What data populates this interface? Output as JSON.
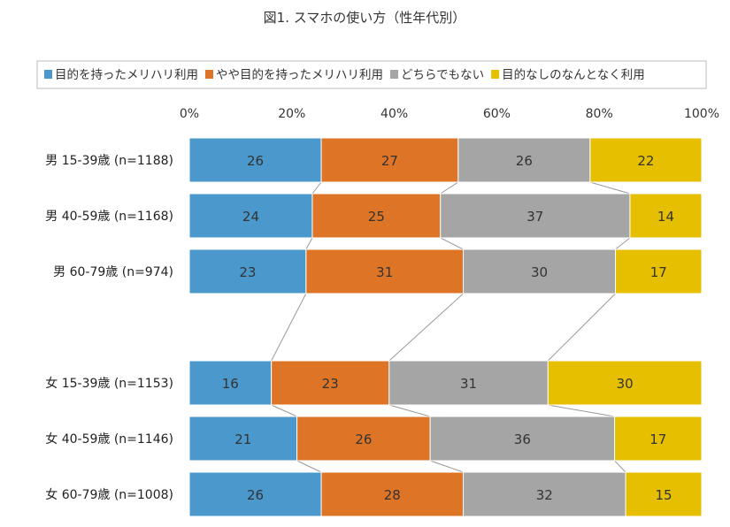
{
  "chart_data": {
    "type": "bar",
    "stacked": "percent",
    "orientation": "horizontal",
    "title": "図1. スマホの使い方（性年代別）",
    "categories": [
      "男 15-39歳 (n=1188)",
      "男 40-59歳 (n=1168)",
      "男 60-79歳 (n=974)",
      "",
      "女 15-39歳 (n=1153)",
      "女 40-59歳 (n=1146)",
      "女 60-79歳 (n=1008)"
    ],
    "series": [
      {
        "name": "目的を持ったメリハリ利用",
        "color": "#4a98cc",
        "values": [
          26,
          24,
          23,
          null,
          16,
          21,
          26
        ]
      },
      {
        "name": "やや目的を持ったメリハリ利用",
        "color": "#dd7426",
        "values": [
          27,
          25,
          31,
          null,
          23,
          26,
          28
        ]
      },
      {
        "name": "どちらでもない",
        "color": "#a5a5a5",
        "values": [
          26,
          37,
          30,
          null,
          31,
          36,
          32
        ]
      },
      {
        "name": "目的なしのなんとなく利用",
        "color": "#e6bf00",
        "values": [
          22,
          14,
          17,
          null,
          30,
          17,
          15
        ]
      }
    ],
    "xlim": [
      0,
      100
    ],
    "xticks": [
      "0%",
      "20%",
      "40%",
      "60%",
      "80%",
      "100%"
    ],
    "legend": "top",
    "grid": false,
    "series_lines": true
  }
}
